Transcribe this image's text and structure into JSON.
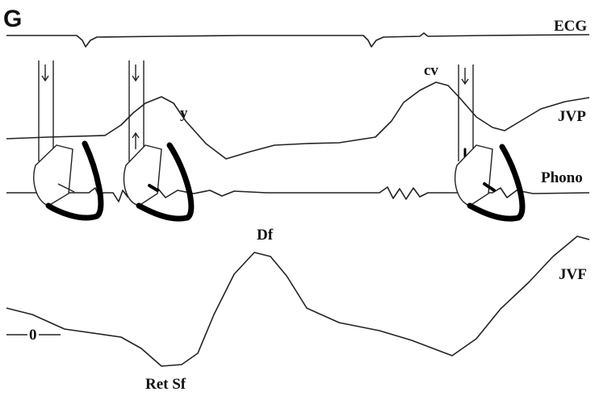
{
  "panel_label": "G",
  "traces": [
    {
      "label": "ECG"
    },
    {
      "label": "JVP"
    },
    {
      "label": "Phono"
    },
    {
      "label": "JVF"
    }
  ],
  "annotations": [
    "y",
    "cv",
    "Df",
    "Ret Sf"
  ],
  "baseline_label": "0"
}
